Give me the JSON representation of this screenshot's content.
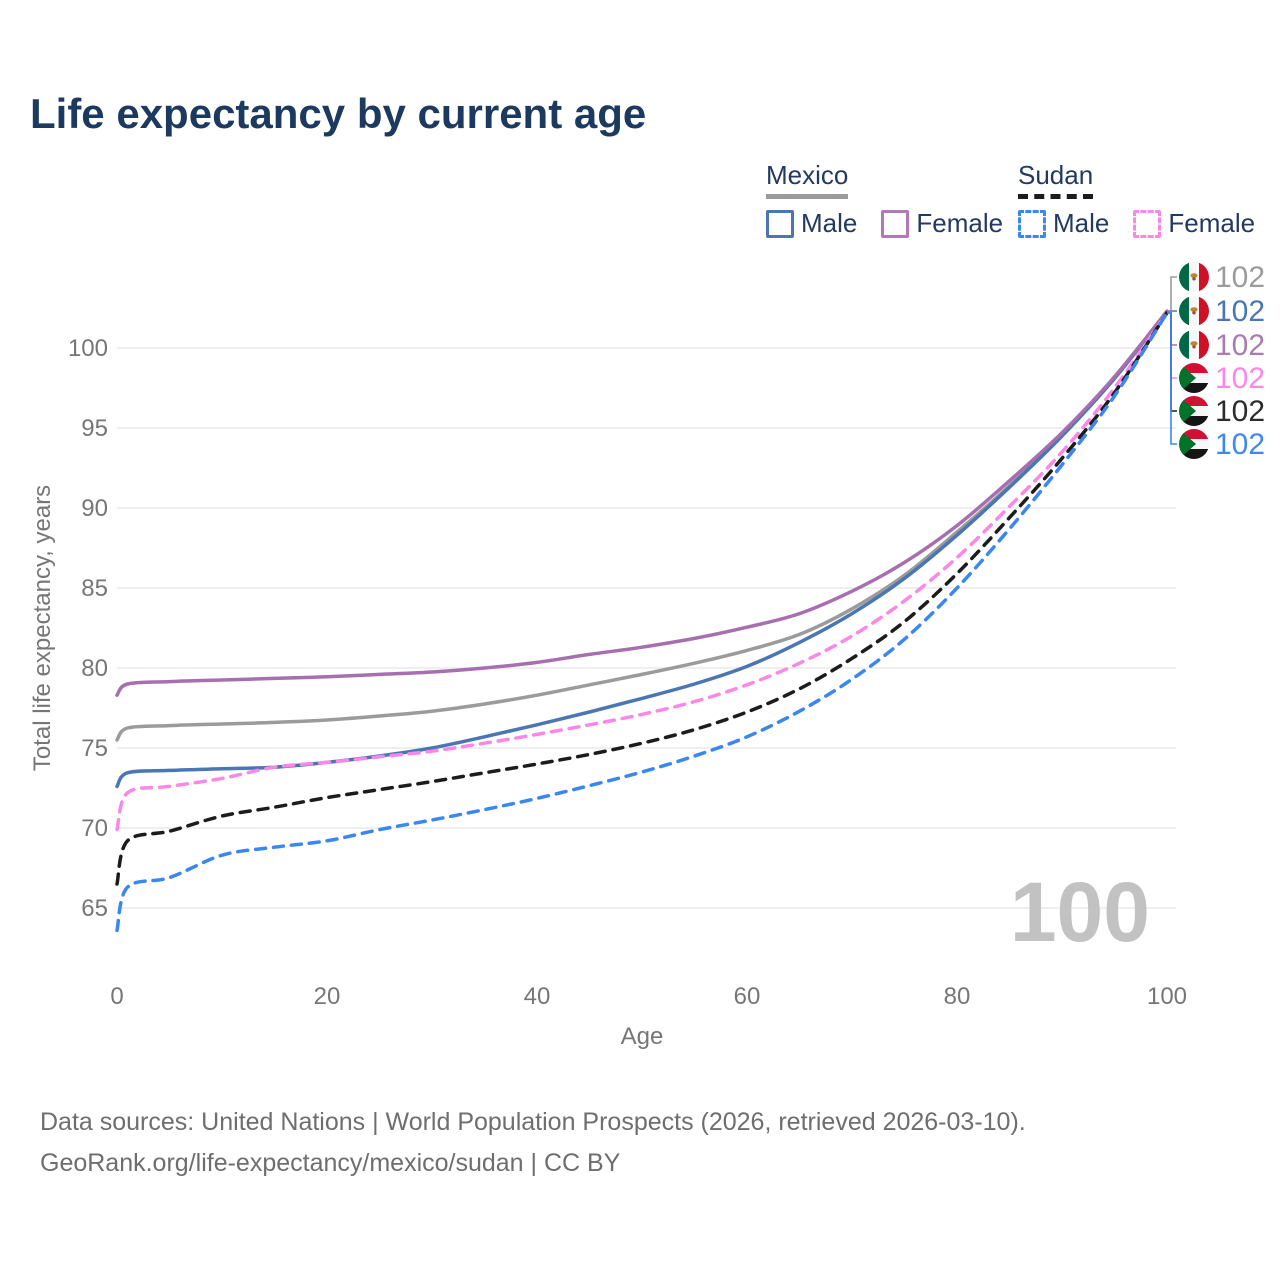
{
  "title": "Life expectancy by current age",
  "watermark_age": "100",
  "legend": {
    "groups": [
      {
        "label": "Mexico",
        "line_style": "solid",
        "swatch_color": "#9b9b9b",
        "items": [
          {
            "label": "Male",
            "color": "#4a77b4"
          },
          {
            "label": "Female",
            "color": "#b279b8"
          }
        ]
      },
      {
        "label": "Sudan",
        "line_style": "dashed",
        "swatch_color": "#1c1c1c",
        "items": [
          {
            "label": "Male",
            "color": "#3b87f1"
          },
          {
            "label": "Female",
            "color": "#fb87e7"
          }
        ]
      }
    ]
  },
  "chart_data": {
    "type": "line",
    "title": "Life expectancy by current age",
    "xlabel": "Age",
    "ylabel": "Total life expectancy, years",
    "xticks": [
      0,
      20,
      40,
      60,
      80,
      100
    ],
    "yticks": [
      65,
      70,
      75,
      80,
      85,
      90,
      95,
      100
    ],
    "xlim": [
      0,
      100
    ],
    "ylim": [
      63,
      103
    ],
    "grid": true,
    "legend_position": "top-right",
    "x": [
      0,
      1,
      5,
      10,
      15,
      20,
      25,
      30,
      35,
      40,
      45,
      50,
      55,
      60,
      65,
      70,
      75,
      80,
      85,
      90,
      95,
      100
    ],
    "series": [
      {
        "name": "Mexico Both sexes",
        "country": "Mexico",
        "sex": "both",
        "color": "#9b9b9b",
        "label_color": "#9b9b9b",
        "dash": false,
        "flag": "mexico",
        "end_value": "102",
        "values": [
          75.5,
          76.25,
          76.4,
          76.5,
          76.6,
          76.75,
          77.0,
          77.3,
          77.75,
          78.3,
          78.95,
          79.6,
          80.3,
          81.1,
          82.1,
          83.7,
          85.8,
          88.5,
          91.4,
          94.6,
          98.1,
          102.3
        ]
      },
      {
        "name": "Mexico Male",
        "country": "Mexico",
        "sex": "male",
        "color": "#4a77b4",
        "label_color": "#4a77b4",
        "dash": false,
        "flag": "mexico",
        "end_value": "102",
        "values": [
          72.6,
          73.45,
          73.6,
          73.7,
          73.8,
          74.1,
          74.5,
          75.0,
          75.7,
          76.45,
          77.25,
          78.1,
          79.0,
          80.1,
          81.6,
          83.4,
          85.6,
          88.3,
          91.3,
          94.5,
          98.1,
          102.3
        ]
      },
      {
        "name": "Mexico Female",
        "country": "Mexico",
        "sex": "female",
        "color": "#a76fb0",
        "label_color": "#a97cb0",
        "dash": false,
        "flag": "mexico",
        "end_value": "102",
        "values": [
          78.3,
          79.0,
          79.15,
          79.25,
          79.35,
          79.45,
          79.6,
          79.75,
          80.0,
          80.35,
          80.85,
          81.3,
          81.85,
          82.55,
          83.4,
          84.8,
          86.6,
          88.9,
          91.7,
          94.7,
          98.2,
          102.3
        ]
      },
      {
        "name": "Sudan Female",
        "country": "Sudan",
        "sex": "female",
        "color": "#fb87e7",
        "label_color": "#fb87e7",
        "dash": true,
        "flag": "sudan",
        "end_value": "102",
        "values": [
          69.9,
          72.2,
          72.6,
          73.1,
          73.8,
          74.1,
          74.45,
          74.8,
          75.3,
          75.85,
          76.45,
          77.1,
          77.9,
          78.95,
          80.3,
          82.0,
          84.2,
          86.9,
          90.1,
          93.5,
          97.5,
          102.2
        ]
      },
      {
        "name": "Sudan Both sexes",
        "country": "Sudan",
        "sex": "both",
        "color": "#1c1c1c",
        "label_color": "#2b2b2b",
        "dash": true,
        "flag": "sudan",
        "end_value": "102",
        "values": [
          66.5,
          69.2,
          69.8,
          70.75,
          71.3,
          71.9,
          72.4,
          72.9,
          73.45,
          74.0,
          74.6,
          75.3,
          76.15,
          77.25,
          78.7,
          80.6,
          82.9,
          85.9,
          89.4,
          93.1,
          97.2,
          102.2
        ]
      },
      {
        "name": "Sudan Male",
        "country": "Sudan",
        "sex": "male",
        "color": "#3b87f1",
        "label_color": "#3f88f2",
        "dash": true,
        "flag": "sudan",
        "end_value": "102",
        "values": [
          63.6,
          66.3,
          66.9,
          68.3,
          68.8,
          69.2,
          69.9,
          70.5,
          71.15,
          71.85,
          72.65,
          73.5,
          74.5,
          75.7,
          77.3,
          79.3,
          81.8,
          85.0,
          88.7,
          92.7,
          97.0,
          102.2
        ]
      }
    ]
  },
  "footer": {
    "line1": "Data sources: United Nations | World Population Prospects (2026, retrieved 2026-03-10).",
    "line2": "GeoRank.org/life-expectancy/mexico/sudan | CC BY"
  }
}
